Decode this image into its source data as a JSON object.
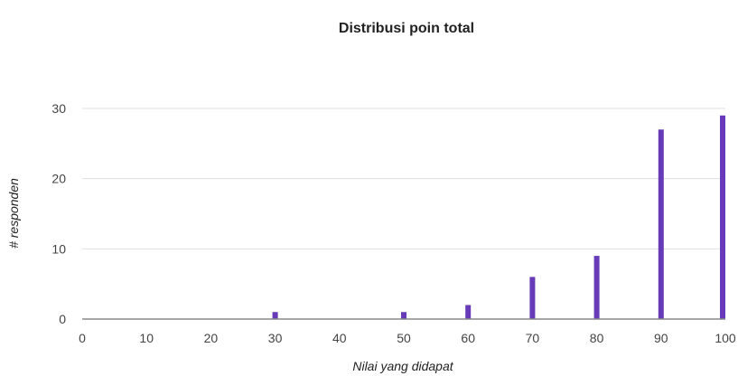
{
  "chart_data": {
    "type": "bar",
    "title": "Distribusi poin total",
    "xlabel": "Nilai yang didapat",
    "ylabel": "# responden",
    "x": [
      30,
      50,
      60,
      70,
      80,
      90,
      100
    ],
    "values": [
      1,
      1,
      2,
      6,
      9,
      27,
      29
    ],
    "xlim": [
      0,
      100
    ],
    "ylim": [
      0,
      30
    ],
    "xticks": [
      0,
      10,
      20,
      30,
      40,
      50,
      60,
      70,
      80,
      90,
      100
    ],
    "yticks": [
      0,
      10,
      20,
      30
    ],
    "grid": true,
    "bar_color": "#673ab7",
    "axis_color": "#888888",
    "grid_color": "#e0e0e0"
  }
}
